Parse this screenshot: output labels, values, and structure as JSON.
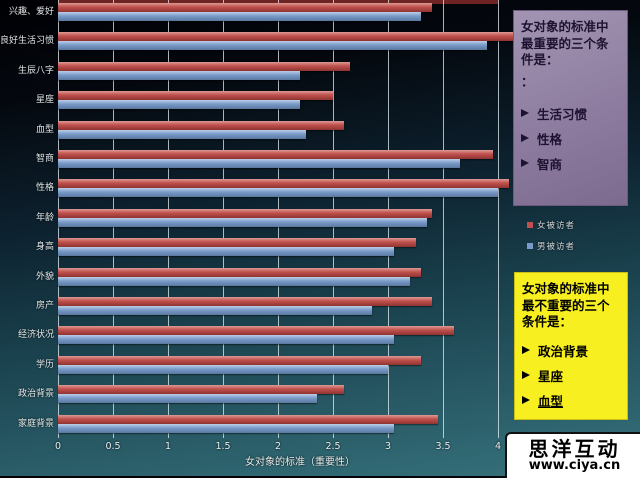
{
  "chart_data": {
    "type": "bar",
    "orientation": "horizontal",
    "xlabel": "女对象的标准（重要性）",
    "xlim": [
      0,
      4
    ],
    "ticks": [
      0,
      0.5,
      1,
      1.5,
      2,
      2.5,
      3,
      3.5,
      4
    ],
    "grid": true,
    "categories": [
      "兴趣、爱好",
      "良好生活习惯",
      "生辰八字",
      "星座",
      "血型",
      "智商",
      "性格",
      "年龄",
      "身高",
      "外貌",
      "房产",
      "经济状况",
      "学历",
      "政治背景",
      "家庭背景"
    ],
    "series": [
      {
        "name": "女被访者",
        "color": "#c0504d",
        "values": [
          3.4,
          4.15,
          2.65,
          2.5,
          2.6,
          3.95,
          4.1,
          3.4,
          3.25,
          3.3,
          3.4,
          3.6,
          3.3,
          2.6,
          3.45
        ]
      },
      {
        "name": "男被访者",
        "color": "#7a9ac9",
        "values": [
          3.3,
          3.9,
          2.2,
          2.2,
          2.25,
          3.65,
          4.0,
          3.35,
          3.05,
          3.2,
          2.85,
          3.05,
          3.0,
          2.35,
          3.05
        ]
      }
    ]
  },
  "legend": {
    "items": [
      {
        "label": "女被访者",
        "color": "#c0504d"
      },
      {
        "label": "男被访者",
        "color": "#7a9ac9"
      }
    ]
  },
  "panels": {
    "most_important": {
      "title": "女对象的标准中最重要的三个条件是：",
      "stray_colon": "：",
      "items": [
        "生活习惯",
        "性格",
        "智商"
      ],
      "bg_color": "#8d7c9f"
    },
    "least_important": {
      "title": "女对象的标准中最不重要的三个条件是：",
      "items": [
        "政治背景",
        "星座",
        "血型"
      ],
      "bg_color": "#f7ef1f"
    }
  },
  "watermark": {
    "name": "思洋互动",
    "url": "www.ciya.cn"
  }
}
